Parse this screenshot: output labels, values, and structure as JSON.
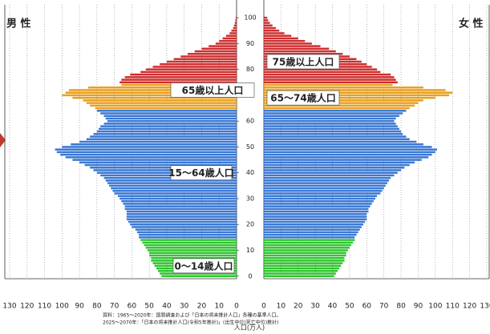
{
  "chart_data": {
    "type": "pyramid",
    "series": [
      {
        "name": "男 性",
        "values": [
          43,
          44,
          45,
          46,
          47,
          48,
          49,
          49,
          50,
          50,
          51,
          52,
          53,
          54,
          55,
          56,
          56,
          57,
          58,
          60,
          61,
          62,
          63,
          63,
          63,
          63,
          64,
          64,
          65,
          66,
          67,
          68,
          70,
          71,
          72,
          73,
          74,
          75,
          76,
          78,
          80,
          82,
          84,
          87,
          90,
          94,
          98,
          101,
          103,
          104,
          100,
          95,
          90,
          86,
          84,
          82,
          80,
          79,
          78,
          76,
          74,
          75,
          76,
          78,
          80,
          81,
          84,
          86,
          88,
          94,
          100,
          98,
          96,
          85,
          66,
          67,
          66,
          64,
          61,
          55,
          52,
          48,
          44,
          40,
          36,
          32,
          28,
          24,
          20,
          16,
          12,
          10,
          8,
          6,
          4,
          3,
          2,
          1.5,
          1,
          0.7,
          0.5
        ]
      },
      {
        "name": "女 性",
        "values": [
          41,
          42,
          43,
          44,
          45,
          46,
          47,
          47,
          48,
          48,
          49,
          50,
          51,
          52,
          53,
          53,
          54,
          55,
          56,
          57,
          58,
          59,
          60,
          60,
          60,
          61,
          61,
          62,
          63,
          64,
          65,
          66,
          68,
          69,
          70,
          71,
          72,
          73,
          74,
          76,
          78,
          80,
          82,
          85,
          88,
          92,
          96,
          98,
          100,
          101,
          98,
          93,
          89,
          85,
          83,
          81,
          80,
          79,
          78,
          77,
          76,
          77,
          79,
          81,
          83,
          85,
          88,
          90,
          93,
          100,
          108,
          110,
          106,
          93,
          75,
          78,
          77,
          76,
          74,
          68,
          66,
          63,
          60,
          57,
          54,
          50,
          46,
          42,
          38,
          33,
          28,
          24,
          20,
          16,
          12,
          9,
          7,
          5,
          3.5,
          2.5,
          2
        ]
      }
    ],
    "y": [
      0,
      1,
      2,
      3,
      4,
      5,
      6,
      7,
      8,
      9,
      10,
      11,
      12,
      13,
      14,
      15,
      16,
      17,
      18,
      19,
      20,
      21,
      22,
      23,
      24,
      25,
      26,
      27,
      28,
      29,
      30,
      31,
      32,
      33,
      34,
      35,
      36,
      37,
      38,
      39,
      40,
      41,
      42,
      43,
      44,
      45,
      46,
      47,
      48,
      49,
      50,
      51,
      52,
      53,
      54,
      55,
      56,
      57,
      58,
      59,
      60,
      61,
      62,
      63,
      64,
      65,
      66,
      67,
      68,
      69,
      70,
      71,
      72,
      73,
      74,
      75,
      76,
      77,
      78,
      79,
      80,
      81,
      82,
      83,
      84,
      85,
      86,
      87,
      88,
      89,
      90,
      91,
      92,
      93,
      94,
      95,
      96,
      97,
      98,
      99,
      100
    ],
    "ylim": [
      -1,
      105
    ],
    "yticks": [
      0,
      10,
      20,
      30,
      40,
      50,
      60,
      70,
      80,
      90,
      100
    ],
    "xlim": [
      0,
      130
    ],
    "xticks": [
      0,
      10,
      20,
      30,
      40,
      50,
      60,
      70,
      80,
      90,
      100,
      110,
      120,
      130
    ],
    "x_label": "人口(万人)",
    "grid": true,
    "age_groups": [
      {
        "ages": [
          0,
          14
        ],
        "color": "#2fc52f"
      },
      {
        "ages": [
          15,
          64
        ],
        "color": "#3a78d4"
      },
      {
        "ages": [
          65,
          74
        ],
        "color": "#e8a020"
      },
      {
        "ages": [
          75,
          100
        ],
        "color": "#cf2f2f"
      }
    ],
    "annotations": [
      "65歳以上人口",
      "15〜64歳人口",
      "0〜14歳人口",
      "75歳以上人口",
      "65〜74歳人口"
    ],
    "source": [
      "資料：1965～2020年：国勢調査および「日本の将来推計人口」各種の基準人口。",
      "2025～2070年：「日本の将来推計人口(令和5年推計)」(出生中位(死亡中位)推計)"
    ]
  }
}
